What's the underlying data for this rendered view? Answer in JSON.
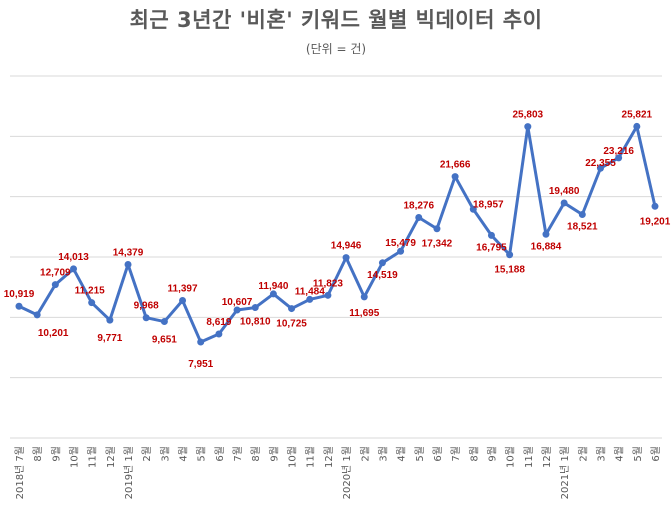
{
  "chart_data": {
    "type": "line",
    "title": "최근 3년간 '비혼' 키워드 월별 빅데이터 추이",
    "subtitle": "(단위 = 건)",
    "categories": [
      "2018년 7월",
      "8월",
      "9월",
      "10월",
      "11월",
      "12월",
      "2019년 1월",
      "2월",
      "3월",
      "4월",
      "5월",
      "6월",
      "7월",
      "8월",
      "9월",
      "10월",
      "11월",
      "12월",
      "2020년 1월",
      "2월",
      "3월",
      "4월",
      "5월",
      "6월",
      "7월",
      "8월",
      "9월",
      "10월",
      "11월",
      "12월",
      "2021년 1월",
      "2월",
      "3월",
      "4월",
      "5월",
      "6월"
    ],
    "values": [
      10919,
      10201,
      12709,
      14013,
      11215,
      9771,
      14379,
      9968,
      9651,
      11397,
      7951,
      8619,
      10607,
      10810,
      11940,
      10725,
      11484,
      11823,
      14946,
      11695,
      14519,
      15479,
      18276,
      17342,
      21666,
      18957,
      16795,
      15188,
      25803,
      16884,
      19480,
      18521,
      22355,
      23216,
      25821,
      19201
    ],
    "data_labels": [
      "10,919",
      "10,201",
      "12,709",
      "14,013",
      "11,215",
      "9,771",
      "14,379",
      "9,968",
      "9,651",
      "11,397",
      "7,951",
      "8,619",
      "10,607",
      "10,810",
      "11,940",
      "10,725",
      "11,484",
      "11,823",
      "14,946",
      "11,695",
      "14,519",
      "15,479",
      "18,276",
      "17,342",
      "21,666",
      "18,957",
      "16,795",
      "15,188",
      "25,803",
      "16,884",
      "19,480",
      "18,521",
      "22,355",
      "23,216",
      "25,821",
      "19,201"
    ],
    "ylim": [
      0,
      30000
    ],
    "grid": true,
    "y_tick_labels_shown": false,
    "legend": "none",
    "line_color": "#4472c4",
    "label_color": "#c00000"
  }
}
